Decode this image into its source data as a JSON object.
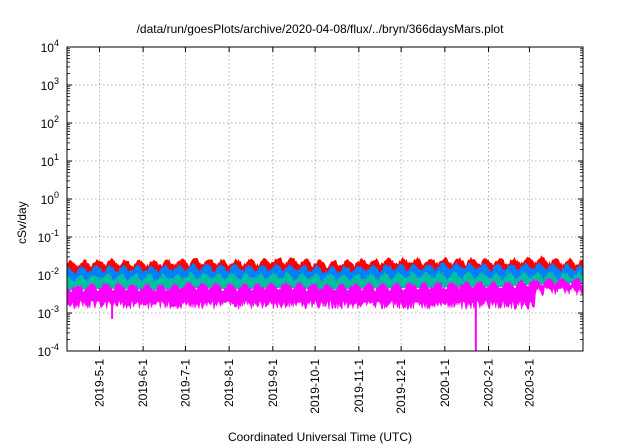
{
  "chart_data": {
    "type": "area",
    "title": "/data/run/goesPlots/archive/2020-04-08/flux/../bryn/366daysMars.plot",
    "xlabel": "Coordinated Universal Time (UTC)",
    "ylabel": "cSv/day",
    "yscale": "log",
    "ylim": [
      0.0001,
      10000
    ],
    "xlim": [
      "2019-04-08",
      "2020-04-08"
    ],
    "y_ticks": [
      {
        "base": "10",
        "exp": "-4"
      },
      {
        "base": "10",
        "exp": "-3"
      },
      {
        "base": "10",
        "exp": "-2"
      },
      {
        "base": "10",
        "exp": "-1"
      },
      {
        "base": "10",
        "exp": "0"
      },
      {
        "base": "10",
        "exp": "1"
      },
      {
        "base": "10",
        "exp": "2"
      },
      {
        "base": "10",
        "exp": "3"
      },
      {
        "base": "10",
        "exp": "4"
      }
    ],
    "x_ticks": [
      "2019-5-1",
      "2019-6-1",
      "2019-7-1",
      "2019-8-1",
      "2019-9-1",
      "2019-10-1",
      "2019-11-1",
      "2019-12-1",
      "2020-1-1",
      "2020-2-1",
      "2020-3-1"
    ],
    "grid": true,
    "series": [
      {
        "color": "#ff0000",
        "values": [
          0.019,
          0.022,
          0.02,
          0.023,
          0.021,
          0.024,
          0.02,
          0.022,
          0.023,
          0.024,
          0.022,
          0.025,
          0.021
        ]
      },
      {
        "color": "#0080ff",
        "values": [
          0.013,
          0.015,
          0.014,
          0.016,
          0.015,
          0.016,
          0.014,
          0.015,
          0.016,
          0.017,
          0.016,
          0.017,
          0.015
        ]
      },
      {
        "color": "#00c0a0",
        "values": [
          0.008,
          0.009,
          0.0085,
          0.0095,
          0.009,
          0.0095,
          0.0085,
          0.009,
          0.0095,
          0.0098,
          0.0092,
          0.01,
          0.0095
        ]
      },
      {
        "color": "#ff00ff",
        "values": [
          0.0045,
          0.005,
          0.0046,
          0.0052,
          0.0048,
          0.0053,
          0.0047,
          0.005,
          0.0052,
          0.0054,
          0.0055,
          0.0065,
          0.007
        ]
      }
    ],
    "series_x": [
      "2019-04-08",
      "2019-05-08",
      "2019-06-08",
      "2019-07-08",
      "2019-08-08",
      "2019-09-08",
      "2019-10-08",
      "2019-11-08",
      "2019-12-08",
      "2020-01-08",
      "2020-02-08",
      "2020-03-08",
      "2020-04-08"
    ],
    "magenta_floor": {
      "before": "2020-03-05",
      "before_value": 0.0015,
      "after_value": 0.0035
    },
    "dips": [
      {
        "x": "2019-05-10",
        "value": 0.0007
      },
      {
        "x": "2020-01-23",
        "value": 0.0001
      }
    ]
  }
}
